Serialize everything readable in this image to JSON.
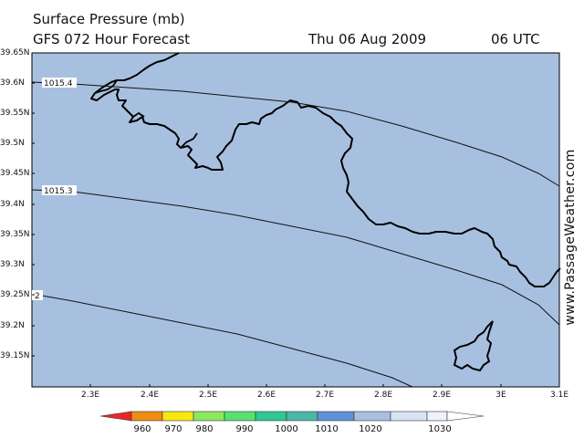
{
  "header": {
    "title": "Surface Pressure (mb)",
    "forecast": "GFS 072 Hour Forecast",
    "date": "Thu 06 Aug 2009",
    "time": "06 UTC"
  },
  "watermark": "www.PassageWeather.com",
  "map": {
    "projection": "lat-lon",
    "lat_ticks": [
      "39.65N",
      "39.6N",
      "39.55N",
      "39.5N",
      "39.45N",
      "39.4N",
      "39.35N",
      "39.3N",
      "39.25N",
      "39.2N",
      "39.15N"
    ],
    "lon_ticks": [
      "2.3E",
      "2.4E",
      "2.5E",
      "2.6E",
      "2.7E",
      "2.8E",
      "2.9E",
      "3E",
      "3.1E"
    ],
    "lat_range": [
      39.1,
      39.66
    ],
    "lon_range": [
      2.2,
      3.1
    ],
    "isobars": [
      {
        "label": "1015.4"
      },
      {
        "label": "1015.3"
      },
      {
        "label": "2"
      }
    ],
    "fill_color": "#a8c0e0",
    "coast_color": "#000000"
  },
  "colorbar": {
    "levels": [
      "960",
      "970",
      "980",
      "990",
      "1000",
      "1010",
      "1020",
      "1030"
    ],
    "colors": [
      "#e8282a",
      "#f08c10",
      "#f8e810",
      "#60e860",
      "#30c890",
      "#6090d8",
      "#a8c0e0",
      "#e8eef8",
      "#ffffff"
    ]
  }
}
